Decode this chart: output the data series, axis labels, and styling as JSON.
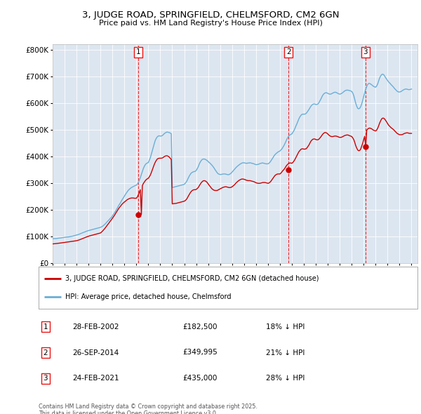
{
  "title": "3, JUDGE ROAD, SPRINGFIELD, CHELMSFORD, CM2 6GN",
  "subtitle": "Price paid vs. HM Land Registry's House Price Index (HPI)",
  "property_label": "3, JUDGE ROAD, SPRINGFIELD, CHELMSFORD, CM2 6GN (detached house)",
  "hpi_label": "HPI: Average price, detached house, Chelmsford",
  "footer": "Contains HM Land Registry data © Crown copyright and database right 2025.\nThis data is licensed under the Open Government Licence v3.0.",
  "transactions": [
    {
      "num": 1,
      "date": "28-FEB-2002",
      "price": 182500,
      "year": 2002.15,
      "pct": "18% ↓ HPI"
    },
    {
      "num": 2,
      "date": "26-SEP-2014",
      "price": 349995,
      "year": 2014.73,
      "pct": "21% ↓ HPI"
    },
    {
      "num": 3,
      "date": "24-FEB-2021",
      "price": 435000,
      "year": 2021.15,
      "pct": "28% ↓ HPI"
    }
  ],
  "hpi_color": "#6aaed6",
  "price_color": "#cc0000",
  "vline_color": "#ee1111",
  "background_color": "#dce6f1",
  "plot_bg_color": "#dce6f1",
  "ylim": [
    0,
    820000
  ],
  "xlim_start": 1995.0,
  "xlim_end": 2025.5,
  "hpi_monthly_years": [
    1995.0,
    1995.08,
    1995.17,
    1995.25,
    1995.33,
    1995.42,
    1995.5,
    1995.58,
    1995.67,
    1995.75,
    1995.83,
    1995.92,
    1996.0,
    1996.08,
    1996.17,
    1996.25,
    1996.33,
    1996.42,
    1996.5,
    1996.58,
    1996.67,
    1996.75,
    1996.83,
    1996.92,
    1997.0,
    1997.08,
    1997.17,
    1997.25,
    1997.33,
    1997.42,
    1997.5,
    1997.58,
    1997.67,
    1997.75,
    1997.83,
    1997.92,
    1998.0,
    1998.08,
    1998.17,
    1998.25,
    1998.33,
    1998.42,
    1998.5,
    1998.58,
    1998.67,
    1998.75,
    1998.83,
    1998.92,
    1999.0,
    1999.08,
    1999.17,
    1999.25,
    1999.33,
    1999.42,
    1999.5,
    1999.58,
    1999.67,
    1999.75,
    1999.83,
    1999.92,
    2000.0,
    2000.08,
    2000.17,
    2000.25,
    2000.33,
    2000.42,
    2000.5,
    2000.58,
    2000.67,
    2000.75,
    2000.83,
    2000.92,
    2001.0,
    2001.08,
    2001.17,
    2001.25,
    2001.33,
    2001.42,
    2001.5,
    2001.58,
    2001.67,
    2001.75,
    2001.83,
    2001.92,
    2002.0,
    2002.08,
    2002.17,
    2002.25,
    2002.33,
    2002.42,
    2002.5,
    2002.58,
    2002.67,
    2002.75,
    2002.83,
    2002.92,
    2003.0,
    2003.08,
    2003.17,
    2003.25,
    2003.33,
    2003.42,
    2003.5,
    2003.58,
    2003.67,
    2003.75,
    2003.83,
    2003.92,
    2004.0,
    2004.08,
    2004.17,
    2004.25,
    2004.33,
    2004.42,
    2004.5,
    2004.58,
    2004.67,
    2004.75,
    2004.83,
    2004.92,
    2005.0,
    2005.08,
    2005.17,
    2005.25,
    2005.33,
    2005.42,
    2005.5,
    2005.58,
    2005.67,
    2005.75,
    2005.83,
    2005.92,
    2006.0,
    2006.08,
    2006.17,
    2006.25,
    2006.33,
    2006.42,
    2006.5,
    2006.58,
    2006.67,
    2006.75,
    2006.83,
    2006.92,
    2007.0,
    2007.08,
    2007.17,
    2007.25,
    2007.33,
    2007.42,
    2007.5,
    2007.58,
    2007.67,
    2007.75,
    2007.83,
    2007.92,
    2008.0,
    2008.08,
    2008.17,
    2008.25,
    2008.33,
    2008.42,
    2008.5,
    2008.58,
    2008.67,
    2008.75,
    2008.83,
    2008.92,
    2009.0,
    2009.08,
    2009.17,
    2009.25,
    2009.33,
    2009.42,
    2009.5,
    2009.58,
    2009.67,
    2009.75,
    2009.83,
    2009.92,
    2010.0,
    2010.08,
    2010.17,
    2010.25,
    2010.33,
    2010.42,
    2010.5,
    2010.58,
    2010.67,
    2010.75,
    2010.83,
    2010.92,
    2011.0,
    2011.08,
    2011.17,
    2011.25,
    2011.33,
    2011.42,
    2011.5,
    2011.58,
    2011.67,
    2011.75,
    2011.83,
    2011.92,
    2012.0,
    2012.08,
    2012.17,
    2012.25,
    2012.33,
    2012.42,
    2012.5,
    2012.58,
    2012.67,
    2012.75,
    2012.83,
    2012.92,
    2013.0,
    2013.08,
    2013.17,
    2013.25,
    2013.33,
    2013.42,
    2013.5,
    2013.58,
    2013.67,
    2013.75,
    2013.83,
    2013.92,
    2014.0,
    2014.08,
    2014.17,
    2014.25,
    2014.33,
    2014.42,
    2014.5,
    2014.58,
    2014.67,
    2014.75,
    2014.83,
    2014.92,
    2015.0,
    2015.08,
    2015.17,
    2015.25,
    2015.33,
    2015.42,
    2015.5,
    2015.58,
    2015.67,
    2015.75,
    2015.83,
    2015.92,
    2016.0,
    2016.08,
    2016.17,
    2016.25,
    2016.33,
    2016.42,
    2016.5,
    2016.58,
    2016.67,
    2016.75,
    2016.83,
    2016.92,
    2017.0,
    2017.08,
    2017.17,
    2017.25,
    2017.33,
    2017.42,
    2017.5,
    2017.58,
    2017.67,
    2017.75,
    2017.83,
    2017.92,
    2018.0,
    2018.08,
    2018.17,
    2018.25,
    2018.33,
    2018.42,
    2018.5,
    2018.58,
    2018.67,
    2018.75,
    2018.83,
    2018.92,
    2019.0,
    2019.08,
    2019.17,
    2019.25,
    2019.33,
    2019.42,
    2019.5,
    2019.58,
    2019.67,
    2019.75,
    2019.83,
    2019.92,
    2020.0,
    2020.08,
    2020.17,
    2020.25,
    2020.33,
    2020.42,
    2020.5,
    2020.58,
    2020.67,
    2020.75,
    2020.83,
    2020.92,
    2021.0,
    2021.08,
    2021.17,
    2021.25,
    2021.33,
    2021.42,
    2021.5,
    2021.58,
    2021.67,
    2021.75,
    2021.83,
    2021.92,
    2022.0,
    2022.08,
    2022.17,
    2022.25,
    2022.33,
    2022.42,
    2022.5,
    2022.58,
    2022.67,
    2022.75,
    2022.83,
    2022.92,
    2023.0,
    2023.08,
    2023.17,
    2023.25,
    2023.33,
    2023.42,
    2023.5,
    2023.58,
    2023.67,
    2023.75,
    2023.83,
    2023.92,
    2024.0,
    2024.08,
    2024.17,
    2024.25,
    2024.33,
    2024.42,
    2024.5,
    2024.58,
    2024.67,
    2024.75,
    2024.83,
    2024.92,
    2025.0
  ],
  "hpi_monthly_values": [
    91000,
    91500,
    92000,
    91800,
    92500,
    93000,
    93500,
    94000,
    94200,
    95000,
    95500,
    96000,
    96500,
    97000,
    97500,
    97800,
    98200,
    98800,
    99500,
    100200,
    101000,
    102000,
    103000,
    104000,
    105000,
    106000,
    107500,
    109000,
    110500,
    112000,
    113500,
    115000,
    116500,
    118000,
    119500,
    121000,
    122000,
    123000,
    124000,
    125000,
    126000,
    127000,
    128000,
    129000,
    130000,
    131000,
    132000,
    133000,
    134000,
    136000,
    138000,
    141000,
    144000,
    148000,
    152000,
    156000,
    160000,
    164000,
    168000,
    172000,
    177000,
    182000,
    188000,
    194000,
    200000,
    207000,
    214000,
    220000,
    226000,
    233000,
    239000,
    245000,
    251000,
    257000,
    263000,
    268000,
    273000,
    277000,
    280000,
    283000,
    285000,
    287000,
    289000,
    291000,
    292000,
    296000,
    302000,
    311000,
    320000,
    332000,
    343000,
    354000,
    363000,
    369000,
    373000,
    375000,
    377000,
    385000,
    395000,
    408000,
    421000,
    435000,
    448000,
    460000,
    468000,
    473000,
    476000,
    477000,
    476000,
    476000,
    478000,
    481000,
    485000,
    488000,
    490000,
    491000,
    490000,
    489000,
    487000,
    485000,
    283000,
    284000,
    285000,
    286000,
    287000,
    288000,
    289000,
    290000,
    291000,
    292000,
    293000,
    294000,
    295000,
    299000,
    304000,
    310000,
    318000,
    326000,
    332000,
    337000,
    340000,
    342000,
    343000,
    344000,
    347000,
    353000,
    361000,
    370000,
    378000,
    384000,
    388000,
    390000,
    390000,
    389000,
    387000,
    384000,
    381000,
    377000,
    374000,
    370000,
    366000,
    361000,
    356000,
    350000,
    344000,
    339000,
    335000,
    333000,
    332000,
    332000,
    333000,
    334000,
    334000,
    334000,
    333000,
    332000,
    331000,
    332000,
    334000,
    337000,
    341000,
    345000,
    350000,
    354000,
    358000,
    362000,
    365000,
    368000,
    371000,
    373000,
    375000,
    376000,
    376000,
    375000,
    374000,
    374000,
    375000,
    375000,
    376000,
    375000,
    374000,
    373000,
    372000,
    370000,
    369000,
    369000,
    370000,
    371000,
    373000,
    374000,
    375000,
    375000,
    374000,
    373000,
    372000,
    372000,
    372000,
    374000,
    378000,
    383000,
    389000,
    395000,
    401000,
    406000,
    410000,
    413000,
    416000,
    418000,
    420000,
    424000,
    428000,
    434000,
    440000,
    448000,
    456000,
    464000,
    471000,
    477000,
    480000,
    482000,
    484000,
    490000,
    496000,
    504000,
    513000,
    522000,
    531000,
    540000,
    548000,
    553000,
    557000,
    558000,
    558000,
    558000,
    560000,
    564000,
    569000,
    575000,
    581000,
    587000,
    592000,
    595000,
    596000,
    596000,
    594000,
    594000,
    596000,
    600000,
    607000,
    614000,
    622000,
    629000,
    634000,
    637000,
    638000,
    638000,
    636000,
    634000,
    633000,
    633000,
    635000,
    637000,
    639000,
    640000,
    640000,
    638000,
    636000,
    634000,
    633000,
    634000,
    636000,
    639000,
    642000,
    645000,
    647000,
    648000,
    648000,
    647000,
    646000,
    645000,
    643000,
    638000,
    628000,
    614000,
    600000,
    588000,
    580000,
    578000,
    580000,
    586000,
    596000,
    609000,
    623000,
    638000,
    651000,
    661000,
    669000,
    673000,
    673000,
    671000,
    668000,
    665000,
    662000,
    660000,
    659000,
    663000,
    671000,
    682000,
    693000,
    701000,
    706000,
    708000,
    706000,
    701000,
    695000,
    689000,
    684000,
    679000,
    675000,
    671000,
    667000,
    663000,
    659000,
    654000,
    650000,
    646000,
    643000,
    641000,
    641000,
    642000,
    644000,
    647000,
    649000,
    651000,
    652000,
    652000,
    651000,
    650000,
    650000,
    651000,
    652000
  ],
  "price_monthly_years": [
    1995.0,
    1995.08,
    1995.17,
    1995.25,
    1995.33,
    1995.42,
    1995.5,
    1995.58,
    1995.67,
    1995.75,
    1995.83,
    1995.92,
    1996.0,
    1996.08,
    1996.17,
    1996.25,
    1996.33,
    1996.42,
    1996.5,
    1996.58,
    1996.67,
    1996.75,
    1996.83,
    1996.92,
    1997.0,
    1997.08,
    1997.17,
    1997.25,
    1997.33,
    1997.42,
    1997.5,
    1997.58,
    1997.67,
    1997.75,
    1997.83,
    1997.92,
    1998.0,
    1998.08,
    1998.17,
    1998.25,
    1998.33,
    1998.42,
    1998.5,
    1998.58,
    1998.67,
    1998.75,
    1998.83,
    1998.92,
    1999.0,
    1999.08,
    1999.17,
    1999.25,
    1999.33,
    1999.42,
    1999.5,
    1999.58,
    1999.67,
    1999.75,
    1999.83,
    1999.92,
    2000.0,
    2000.08,
    2000.17,
    2000.25,
    2000.33,
    2000.42,
    2000.5,
    2000.58,
    2000.67,
    2000.75,
    2000.83,
    2000.92,
    2001.0,
    2001.08,
    2001.17,
    2001.25,
    2001.33,
    2001.42,
    2001.5,
    2001.58,
    2001.67,
    2001.75,
    2001.83,
    2001.92,
    2002.0,
    2002.08,
    2002.17,
    2002.25,
    2002.33,
    2002.42,
    2002.5,
    2002.58,
    2002.67,
    2002.75,
    2002.83,
    2002.92,
    2003.0,
    2003.08,
    2003.17,
    2003.25,
    2003.33,
    2003.42,
    2003.5,
    2003.58,
    2003.67,
    2003.75,
    2003.83,
    2003.92,
    2004.0,
    2004.08,
    2004.17,
    2004.25,
    2004.33,
    2004.42,
    2004.5,
    2004.58,
    2004.67,
    2004.75,
    2004.83,
    2004.92,
    2005.0,
    2005.08,
    2005.17,
    2005.25,
    2005.33,
    2005.42,
    2005.5,
    2005.58,
    2005.67,
    2005.75,
    2005.83,
    2005.92,
    2006.0,
    2006.08,
    2006.17,
    2006.25,
    2006.33,
    2006.42,
    2006.5,
    2006.58,
    2006.67,
    2006.75,
    2006.83,
    2006.92,
    2007.0,
    2007.08,
    2007.17,
    2007.25,
    2007.33,
    2007.42,
    2007.5,
    2007.58,
    2007.67,
    2007.75,
    2007.83,
    2007.92,
    2008.0,
    2008.08,
    2008.17,
    2008.25,
    2008.33,
    2008.42,
    2008.5,
    2008.58,
    2008.67,
    2008.75,
    2008.83,
    2008.92,
    2009.0,
    2009.08,
    2009.17,
    2009.25,
    2009.33,
    2009.42,
    2009.5,
    2009.58,
    2009.67,
    2009.75,
    2009.83,
    2009.92,
    2010.0,
    2010.08,
    2010.17,
    2010.25,
    2010.33,
    2010.42,
    2010.5,
    2010.58,
    2010.67,
    2010.75,
    2010.83,
    2010.92,
    2011.0,
    2011.08,
    2011.17,
    2011.25,
    2011.33,
    2011.42,
    2011.5,
    2011.58,
    2011.67,
    2011.75,
    2011.83,
    2011.92,
    2012.0,
    2012.08,
    2012.17,
    2012.25,
    2012.33,
    2012.42,
    2012.5,
    2012.58,
    2012.67,
    2012.75,
    2012.83,
    2012.92,
    2013.0,
    2013.08,
    2013.17,
    2013.25,
    2013.33,
    2013.42,
    2013.5,
    2013.58,
    2013.67,
    2013.75,
    2013.83,
    2013.92,
    2014.0,
    2014.08,
    2014.17,
    2014.25,
    2014.33,
    2014.42,
    2014.5,
    2014.58,
    2014.67,
    2014.75,
    2014.83,
    2014.92,
    2015.0,
    2015.08,
    2015.17,
    2015.25,
    2015.33,
    2015.42,
    2015.5,
    2015.58,
    2015.67,
    2015.75,
    2015.83,
    2015.92,
    2016.0,
    2016.08,
    2016.17,
    2016.25,
    2016.33,
    2016.42,
    2016.5,
    2016.58,
    2016.67,
    2016.75,
    2016.83,
    2016.92,
    2017.0,
    2017.08,
    2017.17,
    2017.25,
    2017.33,
    2017.42,
    2017.5,
    2017.58,
    2017.67,
    2017.75,
    2017.83,
    2017.92,
    2018.0,
    2018.08,
    2018.17,
    2018.25,
    2018.33,
    2018.42,
    2018.5,
    2018.58,
    2018.67,
    2018.75,
    2018.83,
    2018.92,
    2019.0,
    2019.08,
    2019.17,
    2019.25,
    2019.33,
    2019.42,
    2019.5,
    2019.58,
    2019.67,
    2019.75,
    2019.83,
    2019.92,
    2020.0,
    2020.08,
    2020.17,
    2020.25,
    2020.33,
    2020.42,
    2020.5,
    2020.58,
    2020.67,
    2020.75,
    2020.83,
    2020.92,
    2021.0,
    2021.08,
    2021.17,
    2021.25,
    2021.33,
    2021.42,
    2021.5,
    2021.58,
    2021.67,
    2021.75,
    2021.83,
    2021.92,
    2022.0,
    2022.08,
    2022.17,
    2022.25,
    2022.33,
    2022.42,
    2022.5,
    2022.58,
    2022.67,
    2022.75,
    2022.83,
    2022.92,
    2023.0,
    2023.08,
    2023.17,
    2023.25,
    2023.33,
    2023.42,
    2023.5,
    2023.58,
    2023.67,
    2023.75,
    2023.83,
    2023.92,
    2024.0,
    2024.08,
    2024.17,
    2024.25,
    2024.33,
    2024.42,
    2024.5,
    2024.58,
    2024.67,
    2024.75,
    2024.83,
    2024.92,
    2025.0
  ],
  "price_monthly_values": [
    72000,
    72300,
    72600,
    73000,
    73500,
    74000,
    74500,
    75000,
    75500,
    76000,
    76500,
    77000,
    77500,
    78000,
    78500,
    79000,
    79500,
    80000,
    80500,
    81000,
    81500,
    82000,
    82500,
    83000,
    84000,
    85000,
    86200,
    87500,
    89000,
    90500,
    92000,
    93500,
    95000,
    96500,
    98000,
    99500,
    101000,
    102000,
    103000,
    104000,
    105000,
    106000,
    107000,
    108000,
    109000,
    110000,
    111000,
    112000,
    113000,
    116000,
    120000,
    124000,
    128000,
    133000,
    138000,
    143000,
    148000,
    153000,
    158000,
    163000,
    168000,
    173000,
    179000,
    185000,
    191000,
    197000,
    203000,
    208000,
    213000,
    218000,
    222000,
    226000,
    229000,
    232000,
    235000,
    238000,
    240000,
    242000,
    243000,
    244000,
    244000,
    244000,
    243000,
    243000,
    243000,
    248000,
    256000,
    265000,
    275000,
    182500,
    290000,
    298000,
    304000,
    309000,
    313000,
    316000,
    318000,
    323000,
    330000,
    339000,
    349000,
    360000,
    370000,
    378000,
    385000,
    390000,
    392000,
    393000,
    393000,
    393000,
    394000,
    396000,
    399000,
    401000,
    402000,
    402000,
    400000,
    397000,
    393000,
    388000,
    222000,
    222500,
    223000,
    223500,
    224000,
    225000,
    226000,
    227000,
    228000,
    229000,
    230000,
    231000,
    232000,
    234000,
    238000,
    243000,
    250000,
    257000,
    263000,
    268000,
    272000,
    274000,
    275000,
    275000,
    276000,
    279000,
    283000,
    289000,
    295000,
    301000,
    305000,
    308000,
    309000,
    308000,
    306000,
    302000,
    297000,
    292000,
    287000,
    282000,
    278000,
    275000,
    273000,
    272000,
    272000,
    272000,
    274000,
    276000,
    278000,
    280000,
    282000,
    284000,
    285000,
    286000,
    286000,
    285000,
    284000,
    283000,
    283000,
    284000,
    286000,
    289000,
    292000,
    296000,
    300000,
    304000,
    307000,
    310000,
    312000,
    314000,
    315000,
    315000,
    314000,
    313000,
    311000,
    310000,
    309000,
    309000,
    309000,
    308000,
    307000,
    306000,
    305000,
    303000,
    301000,
    300000,
    299000,
    299000,
    299000,
    300000,
    301000,
    302000,
    302000,
    302000,
    301000,
    300000,
    299000,
    300000,
    303000,
    307000,
    312000,
    318000,
    323000,
    328000,
    331000,
    333000,
    334000,
    334000,
    334000,
    337000,
    342000,
    347000,
    349995,
    356000,
    362000,
    367000,
    371000,
    374000,
    375000,
    375000,
    374000,
    377000,
    382000,
    388000,
    395000,
    403000,
    410000,
    417000,
    422000,
    426000,
    428000,
    428000,
    427000,
    427000,
    428000,
    431000,
    436000,
    442000,
    449000,
    456000,
    461000,
    464000,
    465000,
    465000,
    463000,
    462000,
    462000,
    464000,
    468000,
    473000,
    478000,
    483000,
    487000,
    489000,
    489000,
    487000,
    484000,
    480000,
    477000,
    475000,
    474000,
    474000,
    475000,
    476000,
    476000,
    475000,
    474000,
    472000,
    471000,
    471000,
    472000,
    474000,
    476000,
    478000,
    479000,
    480000,
    480000,
    479000,
    477000,
    476000,
    474000,
    470000,
    463000,
    453000,
    441000,
    431000,
    424000,
    421000,
    422000,
    427000,
    437000,
    449000,
    462000,
    475000,
    435000,
    497000,
    502000,
    505000,
    506000,
    505000,
    503000,
    500000,
    498000,
    496000,
    495000,
    498000,
    505000,
    514000,
    524000,
    533000,
    540000,
    543000,
    543000,
    540000,
    535000,
    529000,
    523000,
    517000,
    513000,
    509000,
    506000,
    503000,
    500000,
    496000,
    492000,
    488000,
    485000,
    483000,
    481000,
    481000,
    481000,
    482000,
    484000,
    486000,
    487000,
    488000,
    488000,
    487000,
    486000,
    486000,
    486000
  ]
}
